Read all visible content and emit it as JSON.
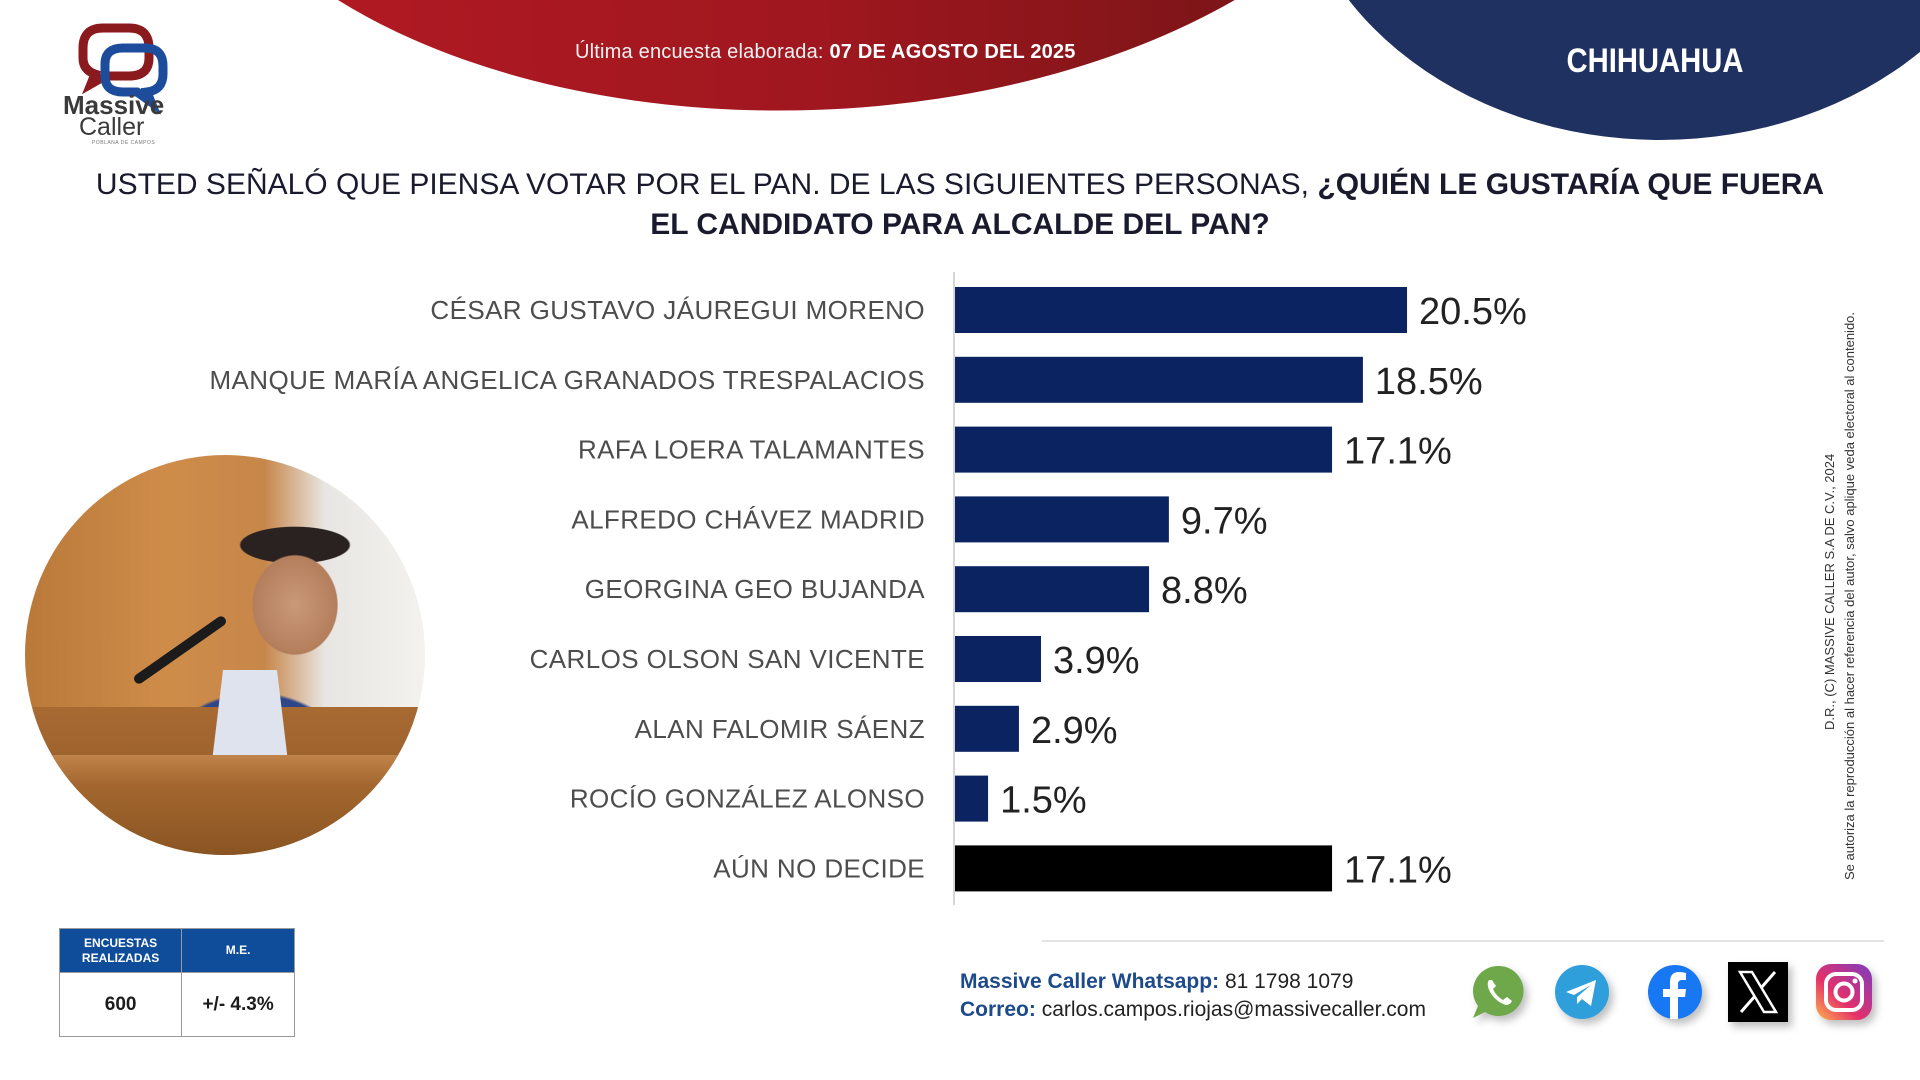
{
  "header": {
    "survey_date_label": "Última encuesta elaborada:",
    "survey_date_value": "07 DE AGOSTO DEL 2025",
    "region": "CHIHUAHUA"
  },
  "logo": {
    "line1": "Massive",
    "line2": "Caller",
    "tagline": "POBLANA DE CAMPOS"
  },
  "question": {
    "plain": "USTED SEÑALÓ QUE PIENSA VOTAR POR EL PAN. DE LAS SIGUIENTES PERSONAS,",
    "bold_line1": "¿QUIÉN LE GUSTARÍA QUE FUERA",
    "bold_line2": "EL CANDIDATO PARA ALCALDE DEL PAN?"
  },
  "chart_data": {
    "type": "bar",
    "orientation": "horizontal",
    "title": "USTED SEÑALÓ QUE PIENSA VOTAR POR EL PAN. DE LAS SIGUIENTES PERSONAS, ¿QUIÉN LE GUSTARÍA QUE FUERA EL CANDIDATO PARA ALCALDE DEL PAN?",
    "xlabel": "",
    "ylabel": "",
    "unit": "%",
    "xlim": [
      0,
      21
    ],
    "grid": false,
    "categories": [
      "CÉSAR GUSTAVO JÁUREGUI MORENO",
      "MANQUE MARÍA ANGELICA GRANADOS TRESPALACIOS",
      "RAFA LOERA TALAMANTES",
      "ALFREDO CHÁVEZ MADRID",
      "GEORGINA GEO BUJANDA",
      "CARLOS OLSON SAN VICENTE",
      "ALAN FALOMIR SÁENZ",
      "ROCÍO GONZÁLEZ ALONSO",
      "AÚN NO DECIDE"
    ],
    "values": [
      20.5,
      18.5,
      17.1,
      9.7,
      8.8,
      3.9,
      2.9,
      1.5,
      17.1
    ],
    "value_labels": [
      "20.5%",
      "18.5%",
      "17.1%",
      "9.7%",
      "8.8%",
      "3.9%",
      "2.9%",
      "1.5%",
      "17.1%"
    ],
    "colors": [
      "#0c2361",
      "#0c2361",
      "#0c2361",
      "#0c2361",
      "#0c2361",
      "#0c2361",
      "#0c2361",
      "#0c2361",
      "#000000"
    ]
  },
  "stats": {
    "col1_header_line1": "ENCUESTAS",
    "col1_header_line2": "REALIZADAS",
    "col2_header": "M.E.",
    "sample_size": "600",
    "margin_error": "+/- 4.3%"
  },
  "contact": {
    "whatsapp_label": "Massive Caller Whatsapp:",
    "whatsapp_value": "81 1798 1079",
    "email_label": "Correo:",
    "email_value": "carlos.campos.riojas@massivecaller.com"
  },
  "social": [
    "whatsapp-icon",
    "telegram-icon",
    "facebook-icon",
    "x-icon",
    "instagram-icon"
  ],
  "legal": {
    "line1": "D.R., (C) MASSIVE CALLER S.A DE C.V., 2024",
    "line2": "Se autoriza la reproducción al hacer referencia del autor, salvo aplique veda electoral al contenido."
  },
  "colors": {
    "brand_red": "#a0171f",
    "brand_blue": "#1f3160",
    "bar_blue": "#0c2361",
    "table_header": "#0f4c9a"
  }
}
